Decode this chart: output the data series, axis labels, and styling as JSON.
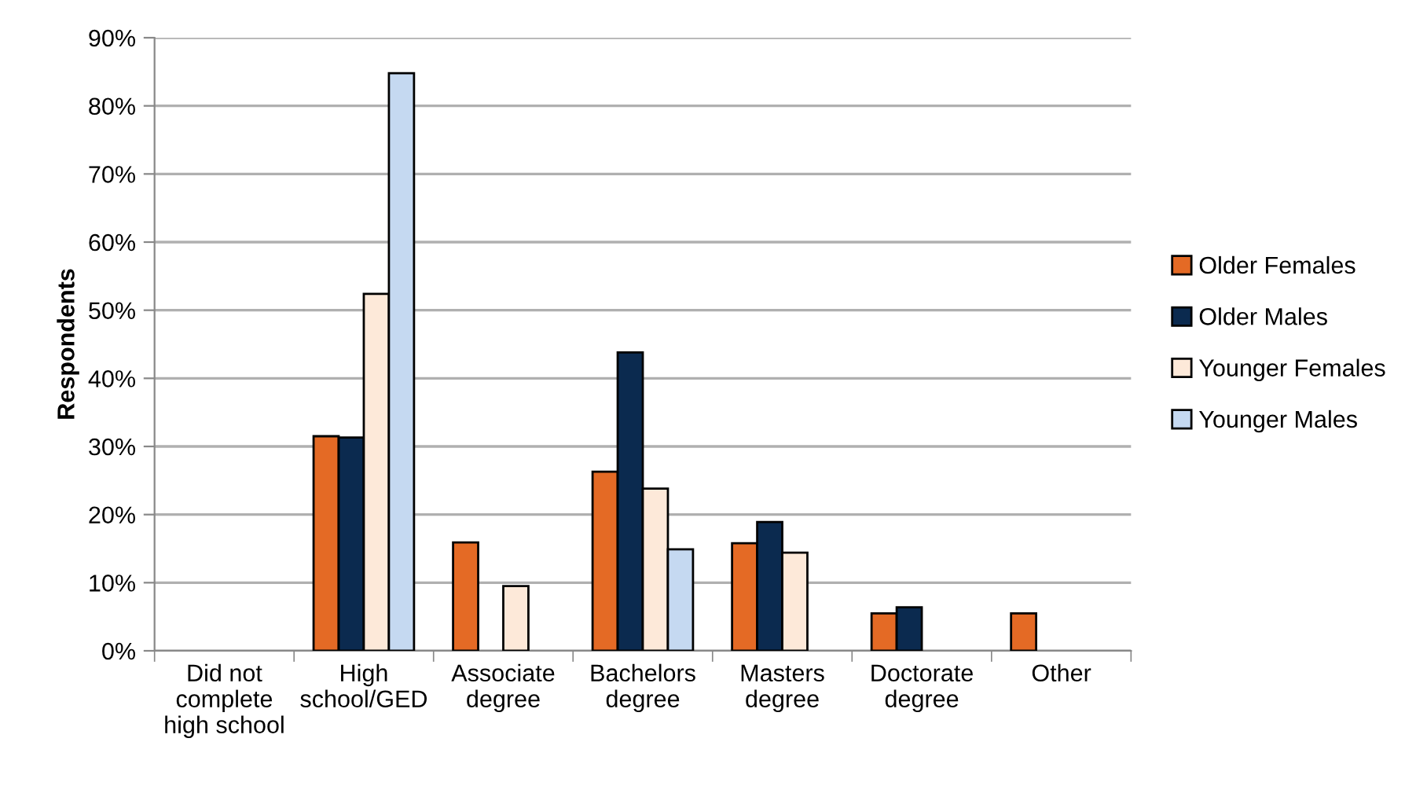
{
  "chart_data": {
    "type": "bar",
    "ylabel": "Respondents",
    "categories": [
      "Did not\ncomplete\nhigh school",
      "High\nschool/GED",
      "Associate\ndegree",
      "Bachelors\ndegree",
      "Masters\ndegree",
      "Doctorate\ndegree",
      "Other"
    ],
    "series": [
      {
        "name": "Older Females",
        "color": "#e46a25",
        "values": [
          null,
          31.5,
          15.9,
          26.3,
          15.8,
          5.5,
          5.5
        ]
      },
      {
        "name": "Older Males",
        "color": "#0b2a4f",
        "values": [
          null,
          31.3,
          null,
          43.8,
          18.9,
          6.4,
          null
        ]
      },
      {
        "name": "Younger Females",
        "color": "#fde9d9",
        "values": [
          null,
          52.4,
          9.5,
          23.8,
          14.4,
          null,
          null
        ]
      },
      {
        "name": "Younger Males",
        "color": "#c5d9f1",
        "values": [
          null,
          84.8,
          null,
          14.9,
          null,
          null,
          null
        ]
      }
    ],
    "ylim": [
      0,
      90
    ],
    "yticks": [
      {
        "value": 0,
        "label": "0%"
      },
      {
        "value": 10,
        "label": "10%"
      },
      {
        "value": 20,
        "label": "20%"
      },
      {
        "value": 30,
        "label": "30%"
      },
      {
        "value": 40,
        "label": "40%"
      },
      {
        "value": 50,
        "label": "50%"
      },
      {
        "value": 60,
        "label": "60%"
      },
      {
        "value": 70,
        "label": "70%"
      },
      {
        "value": 80,
        "label": "80%"
      },
      {
        "value": 90,
        "label": "90%"
      }
    ],
    "grid": "y",
    "legend": "right"
  }
}
